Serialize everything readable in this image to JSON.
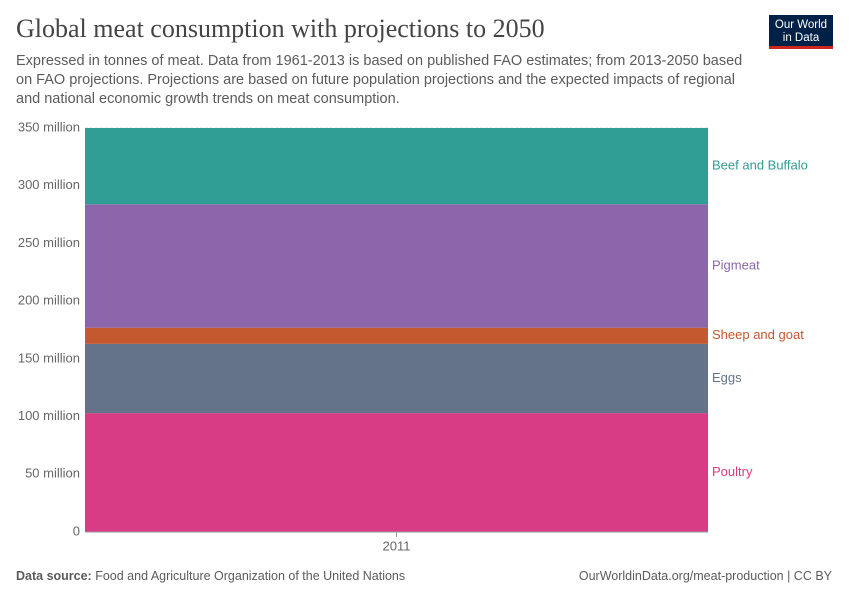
{
  "chart_data": {
    "type": "stacked_area",
    "title": "Global meat consumption with projections to 2050",
    "subtitle": "Expressed in tonnes of meat. Data from 1961-2013 is based on published FAO estimates; from 2013-2050 based on FAO projections. Projections are based on future population projections and the expected impacts of regional and national economic growth trends on meat consumption.",
    "logo": [
      "Our World",
      "in Data"
    ],
    "categories": [
      "2011"
    ],
    "series": [
      {
        "name": "Poultry",
        "color": "#d73c84",
        "values": [
          103000000
        ]
      },
      {
        "name": "Eggs",
        "color": "#64738a",
        "values": [
          60000000
        ]
      },
      {
        "name": "Sheep and goat",
        "color": "#c4582f",
        "values": [
          14000000
        ]
      },
      {
        "name": "Pigmeat",
        "color": "#8b66aa",
        "values": [
          107000000
        ]
      },
      {
        "name": "Beef and Buffalo",
        "color": "#319e96",
        "values": [
          66000000
        ]
      }
    ],
    "ylim": [
      0,
      350000000
    ],
    "yticks": [
      0,
      {
        "value": 50000000,
        "label": "50 million"
      },
      {
        "value": 100000000,
        "label": "100 million"
      },
      {
        "value": 150000000,
        "label": "150 million"
      },
      {
        "value": 200000000,
        "label": "200 million"
      },
      {
        "value": 250000000,
        "label": "250 million"
      },
      {
        "value": 300000000,
        "label": "300 million"
      },
      {
        "value": 350000000,
        "label": "350 million"
      }
    ],
    "source_label": "Data source:",
    "source": "Food and Agriculture Organization of the United Nations",
    "credit": "OurWorldinData.org/meat-production | CC BY"
  }
}
